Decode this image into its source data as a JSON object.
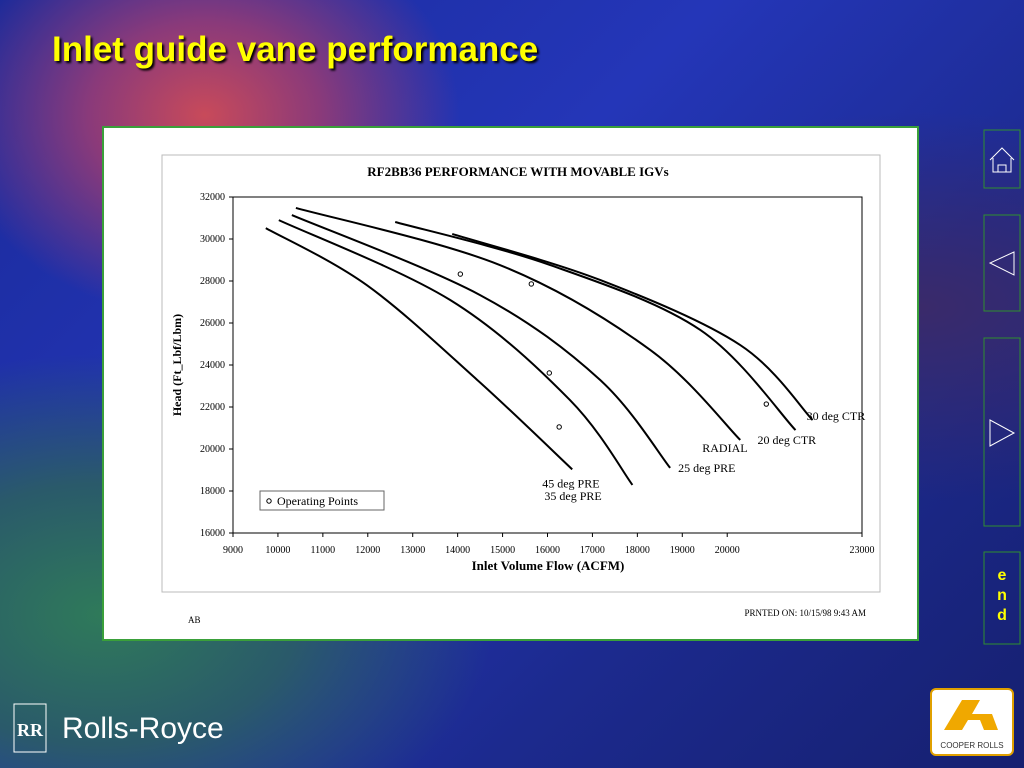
{
  "slide_title": "Inlet guide vane performance",
  "nav": {
    "end": [
      "e",
      "n",
      "d"
    ]
  },
  "footer": {
    "brand": "Rolls-Royce",
    "partner": "COOPER ROLLS"
  },
  "chart_data": {
    "type": "line",
    "title": "RF2BB36 PERFORMANCE WITH MOVABLE IGVs",
    "x_label": "Inlet Volume Flow (ACFM)",
    "y_label": "Head (Ft_Lbf/Lbm)",
    "footer_left": "AB",
    "footer_right": "PRNTED ON: 10/15/98 9:43 AM",
    "xlim": [
      9000,
      23000
    ],
    "xticks": [
      9000,
      10000,
      11000,
      12000,
      13000,
      14000,
      15000,
      16000,
      17000,
      18000,
      19000,
      20000,
      23000
    ],
    "ylim": [
      16000,
      32000
    ],
    "yticks": [
      16000,
      18000,
      20000,
      22000,
      24000,
      26000,
      28000,
      30000,
      32000
    ],
    "series": [
      {
        "name": "45 deg PRE",
        "color": "#000000",
        "x": [
          9730,
          11980,
          14430,
          16550
        ],
        "values": [
          30520,
          27800,
          23300,
          19030
        ]
      },
      {
        "name": "35 deg PRE",
        "color": "#000000",
        "x": [
          10020,
          13830,
          16500,
          17890
        ],
        "values": [
          30900,
          27100,
          22330,
          18290
        ]
      },
      {
        "name": "25 deg PRE",
        "color": "#000000",
        "x": [
          10310,
          14500,
          17170,
          18730
        ],
        "values": [
          31140,
          27330,
          23290,
          19100
        ]
      },
      {
        "name": "RADIAL",
        "color": "#000000",
        "x": [
          10400,
          14940,
          18290,
          20290
        ],
        "values": [
          31480,
          28760,
          24710,
          20430
        ]
      },
      {
        "name": "20 deg CTR",
        "color": "#000000",
        "x": [
          12610,
          16060,
          19400,
          21520
        ],
        "values": [
          30810,
          28760,
          25670,
          20900
        ]
      },
      {
        "name": "30 deg CTR",
        "color": "#000000",
        "x": [
          13880,
          17170,
          20290,
          21900
        ],
        "values": [
          30240,
          28050,
          24950,
          21380
        ]
      },
      {
        "name": "Operating Points",
        "type": "scatter",
        "color": "#000000",
        "x": [
          14060,
          15640,
          16040,
          16260,
          20870
        ],
        "values": [
          28330,
          27860,
          23620,
          21050,
          22140
        ]
      }
    ]
  }
}
